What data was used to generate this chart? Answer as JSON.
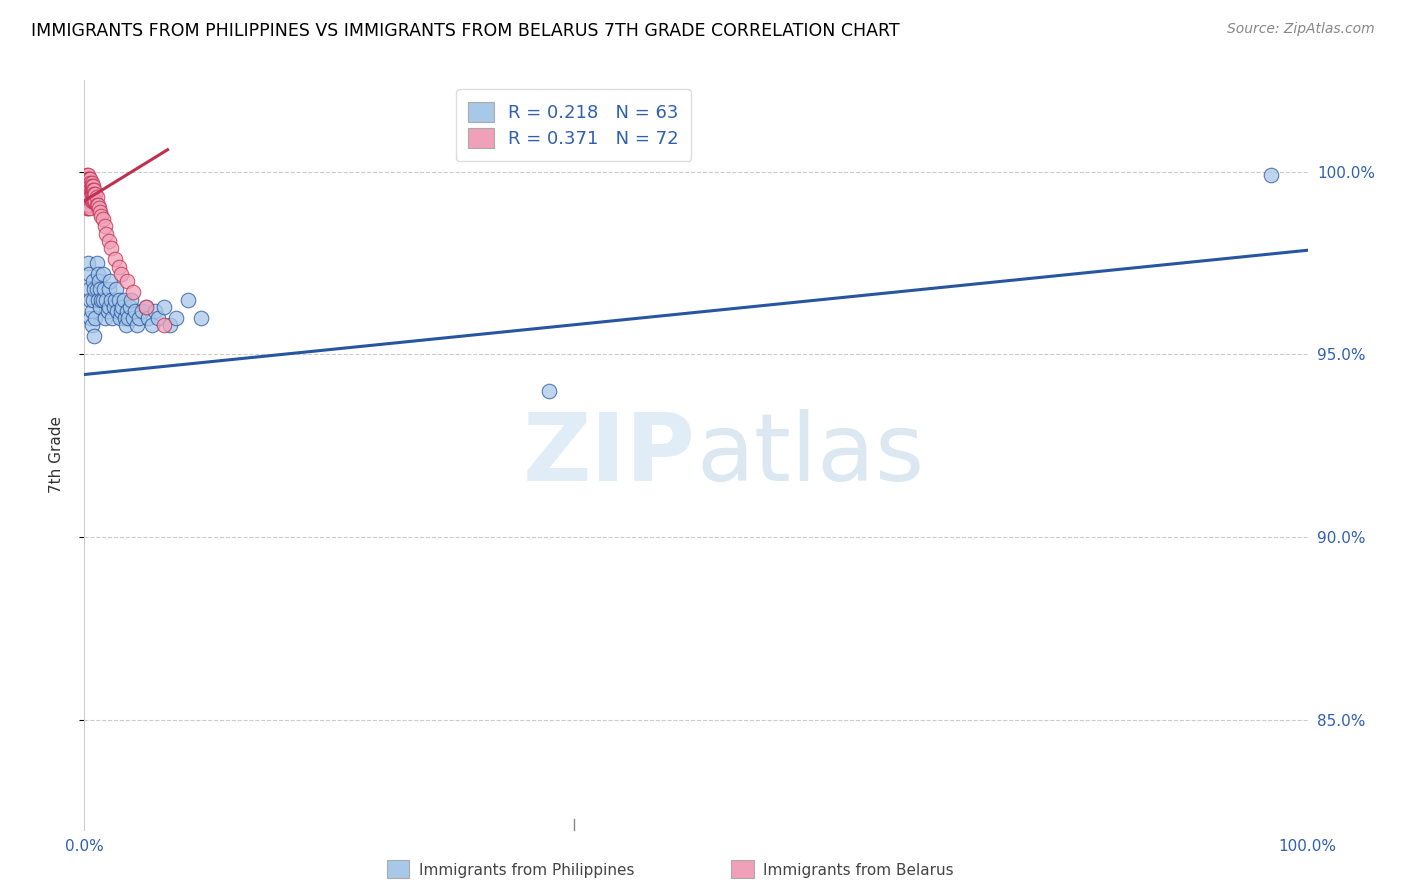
{
  "title": "IMMIGRANTS FROM PHILIPPINES VS IMMIGRANTS FROM BELARUS 7TH GRADE CORRELATION CHART",
  "source": "Source: ZipAtlas.com",
  "ylabel": "7th Grade",
  "ylabel_right_ticks": [
    "100.0%",
    "95.0%",
    "90.0%",
    "85.0%"
  ],
  "ylabel_right_vals": [
    1.0,
    0.95,
    0.9,
    0.85
  ],
  "xlim": [
    0.0,
    1.0
  ],
  "ylim": [
    0.82,
    1.025
  ],
  "color_blue": "#a8c8e8",
  "color_pink": "#f0a0b8",
  "line_blue": "#2855a0",
  "line_pink": "#c03050",
  "watermark_zip": "ZIP",
  "watermark_atlas": "atlas",
  "philippines_x": [
    0.003,
    0.004,
    0.004,
    0.005,
    0.005,
    0.006,
    0.006,
    0.007,
    0.007,
    0.008,
    0.008,
    0.009,
    0.01,
    0.01,
    0.011,
    0.011,
    0.012,
    0.013,
    0.013,
    0.014,
    0.015,
    0.015,
    0.016,
    0.017,
    0.018,
    0.019,
    0.02,
    0.02,
    0.021,
    0.022,
    0.023,
    0.024,
    0.025,
    0.026,
    0.027,
    0.028,
    0.029,
    0.03,
    0.031,
    0.032,
    0.033,
    0.034,
    0.035,
    0.036,
    0.037,
    0.038,
    0.04,
    0.041,
    0.043,
    0.045,
    0.047,
    0.05,
    0.052,
    0.055,
    0.058,
    0.06,
    0.065,
    0.07,
    0.075,
    0.085,
    0.095,
    0.38,
    0.97
  ],
  "philippines_y": [
    0.975,
    0.968,
    0.972,
    0.96,
    0.965,
    0.962,
    0.958,
    0.97,
    0.965,
    0.968,
    0.955,
    0.96,
    0.975,
    0.968,
    0.972,
    0.965,
    0.97,
    0.968,
    0.963,
    0.965,
    0.972,
    0.965,
    0.968,
    0.96,
    0.965,
    0.962,
    0.968,
    0.963,
    0.97,
    0.965,
    0.96,
    0.963,
    0.965,
    0.968,
    0.962,
    0.965,
    0.96,
    0.962,
    0.963,
    0.965,
    0.96,
    0.958,
    0.962,
    0.96,
    0.963,
    0.965,
    0.96,
    0.962,
    0.958,
    0.96,
    0.962,
    0.963,
    0.96,
    0.958,
    0.962,
    0.96,
    0.963,
    0.958,
    0.96,
    0.965,
    0.96,
    0.94,
    0.999
  ],
  "belarus_x": [
    0.001,
    0.001,
    0.001,
    0.001,
    0.001,
    0.002,
    0.002,
    0.002,
    0.002,
    0.002,
    0.002,
    0.002,
    0.002,
    0.002,
    0.002,
    0.003,
    0.003,
    0.003,
    0.003,
    0.003,
    0.003,
    0.003,
    0.003,
    0.003,
    0.003,
    0.004,
    0.004,
    0.004,
    0.004,
    0.004,
    0.004,
    0.004,
    0.004,
    0.005,
    0.005,
    0.005,
    0.005,
    0.005,
    0.005,
    0.005,
    0.006,
    0.006,
    0.006,
    0.006,
    0.006,
    0.007,
    0.007,
    0.007,
    0.007,
    0.008,
    0.008,
    0.008,
    0.009,
    0.009,
    0.01,
    0.01,
    0.011,
    0.012,
    0.013,
    0.014,
    0.015,
    0.017,
    0.018,
    0.02,
    0.022,
    0.025,
    0.028,
    0.03,
    0.035,
    0.04,
    0.05,
    0.065
  ],
  "belarus_y": [
    0.998,
    0.997,
    0.996,
    0.995,
    0.994,
    0.999,
    0.998,
    0.997,
    0.996,
    0.995,
    0.994,
    0.993,
    0.992,
    0.991,
    0.99,
    0.999,
    0.998,
    0.997,
    0.996,
    0.995,
    0.994,
    0.993,
    0.992,
    0.991,
    0.99,
    0.998,
    0.997,
    0.996,
    0.995,
    0.994,
    0.993,
    0.992,
    0.991,
    0.998,
    0.997,
    0.996,
    0.995,
    0.994,
    0.993,
    0.99,
    0.997,
    0.996,
    0.995,
    0.994,
    0.992,
    0.996,
    0.995,
    0.994,
    0.992,
    0.995,
    0.994,
    0.992,
    0.994,
    0.992,
    0.993,
    0.991,
    0.991,
    0.99,
    0.989,
    0.988,
    0.987,
    0.985,
    0.983,
    0.981,
    0.979,
    0.976,
    0.974,
    0.972,
    0.97,
    0.967,
    0.963,
    0.958
  ],
  "blue_line_x": [
    0.0,
    1.0
  ],
  "blue_line_y": [
    0.9445,
    0.9785
  ],
  "pink_line_x": [
    0.0,
    0.068
  ],
  "pink_line_y": [
    0.992,
    1.006
  ],
  "grid_color": "#cccccc",
  "grid_style": "--",
  "ytick_gridvals": [
    1.0,
    0.95,
    0.9,
    0.85
  ]
}
